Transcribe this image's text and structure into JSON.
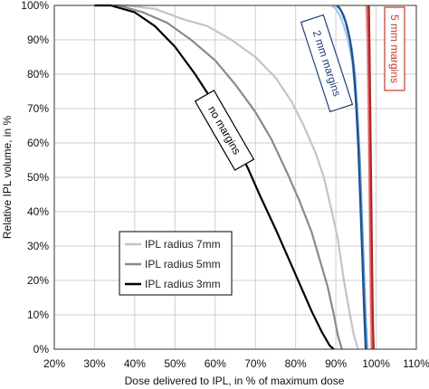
{
  "chart_data": {
    "type": "line",
    "title": "",
    "xlabel": "Dose delivered to IPL, in % of maximum dose",
    "ylabel": "Relative IPL volume, in %",
    "xlim": [
      20,
      110
    ],
    "ylim": [
      0,
      100
    ],
    "x_ticks": [
      "20%",
      "30%",
      "40%",
      "50%",
      "60%",
      "70%",
      "80%",
      "90%",
      "100%",
      "110%"
    ],
    "y_ticks": [
      "0%",
      "10%",
      "20%",
      "30%",
      "40%",
      "50%",
      "60%",
      "70%",
      "80%",
      "90%",
      "100%"
    ],
    "grid": true,
    "legend_position": "lower-left",
    "legend": [
      {
        "label": "IPL radius 7mm",
        "color": "#c4c4c4"
      },
      {
        "label": "IPL radius 5mm",
        "color": "#8a8a8a"
      },
      {
        "label": "IPL radius 3mm",
        "color": "#000000"
      }
    ],
    "annotations": [
      {
        "text": "no margins",
        "color": "#000000"
      },
      {
        "text": "2 mm margins",
        "color": "#1f3f7a"
      },
      {
        "text": "5 mm margins",
        "color": "#c0392b"
      }
    ],
    "series": [
      {
        "group": "no margins",
        "color": "#c4c4c4",
        "points": [
          [
            30,
            100
          ],
          [
            38,
            100
          ],
          [
            45,
            99
          ],
          [
            52,
            96
          ],
          [
            58,
            94
          ],
          [
            64,
            90
          ],
          [
            70,
            85
          ],
          [
            75,
            79
          ],
          [
            79,
            72
          ],
          [
            82,
            65
          ],
          [
            85,
            57
          ],
          [
            87,
            50
          ],
          [
            89,
            40
          ],
          [
            90.5,
            32
          ],
          [
            92,
            20
          ],
          [
            93.5,
            10
          ],
          [
            94.5,
            4
          ],
          [
            95.5,
            0
          ]
        ]
      },
      {
        "group": "no margins",
        "color": "#8a8a8a",
        "points": [
          [
            30,
            100
          ],
          [
            36,
            100
          ],
          [
            42,
            98
          ],
          [
            48,
            95
          ],
          [
            54,
            90
          ],
          [
            60,
            84
          ],
          [
            65,
            77
          ],
          [
            70,
            69
          ],
          [
            74,
            61
          ],
          [
            78,
            51
          ],
          [
            81,
            43
          ],
          [
            84,
            34
          ],
          [
            86,
            26
          ],
          [
            88,
            18
          ],
          [
            89.5,
            10
          ],
          [
            90.5,
            4
          ],
          [
            91.5,
            0
          ]
        ]
      },
      {
        "group": "no margins",
        "color": "#000000",
        "points": [
          [
            30,
            100
          ],
          [
            34,
            100
          ],
          [
            40,
            98
          ],
          [
            45,
            94
          ],
          [
            50,
            88
          ],
          [
            55,
            80
          ],
          [
            60,
            71
          ],
          [
            64,
            62
          ],
          [
            68,
            53
          ],
          [
            71,
            45
          ],
          [
            75,
            35
          ],
          [
            78,
            27
          ],
          [
            81,
            19
          ],
          [
            84,
            11
          ],
          [
            86.5,
            5
          ],
          [
            88.5,
            1
          ],
          [
            89.5,
            0
          ]
        ]
      },
      {
        "group": "2 mm margins",
        "color": "#a8c8ec",
        "points": [
          [
            89,
            100
          ],
          [
            90,
            99
          ],
          [
            91,
            97
          ],
          [
            92,
            94
          ],
          [
            93,
            90
          ],
          [
            94,
            84
          ],
          [
            94.8,
            76
          ],
          [
            95.4,
            65
          ],
          [
            96,
            50
          ],
          [
            96.5,
            35
          ],
          [
            97,
            20
          ],
          [
            97.4,
            8
          ],
          [
            97.8,
            0
          ]
        ]
      },
      {
        "group": "2 mm margins",
        "color": "#5b9bd5",
        "points": [
          [
            90,
            100
          ],
          [
            91,
            99
          ],
          [
            92,
            97
          ],
          [
            93,
            93
          ],
          [
            94,
            87
          ],
          [
            94.8,
            79
          ],
          [
            95.4,
            68
          ],
          [
            96,
            54
          ],
          [
            96.5,
            38
          ],
          [
            97,
            22
          ],
          [
            97.4,
            9
          ],
          [
            97.8,
            0
          ]
        ]
      },
      {
        "group": "2 mm margins",
        "color": "#1f4e8c",
        "points": [
          [
            90.5,
            100
          ],
          [
            91.5,
            98
          ],
          [
            92.5,
            95
          ],
          [
            93.5,
            90
          ],
          [
            94.3,
            83
          ],
          [
            95,
            72
          ],
          [
            95.6,
            58
          ],
          [
            96.1,
            42
          ],
          [
            96.6,
            26
          ],
          [
            97,
            12
          ],
          [
            97.4,
            0
          ]
        ]
      },
      {
        "group": "5 mm margins",
        "color": "#f2b8b8",
        "points": [
          [
            97.5,
            100
          ],
          [
            97.8,
            90
          ],
          [
            98,
            75
          ],
          [
            98.2,
            55
          ],
          [
            98.4,
            35
          ],
          [
            98.6,
            15
          ],
          [
            98.8,
            0
          ]
        ]
      },
      {
        "group": "5 mm margins",
        "color": "#e06666",
        "points": [
          [
            97.8,
            100
          ],
          [
            98,
            88
          ],
          [
            98.2,
            70
          ],
          [
            98.4,
            50
          ],
          [
            98.6,
            30
          ],
          [
            98.8,
            12
          ],
          [
            99,
            0
          ]
        ]
      },
      {
        "group": "5 mm margins",
        "color": "#b22222",
        "points": [
          [
            98.2,
            100
          ],
          [
            98.4,
            85
          ],
          [
            98.6,
            65
          ],
          [
            98.8,
            45
          ],
          [
            99,
            25
          ],
          [
            99.2,
            8
          ],
          [
            99.4,
            0
          ]
        ]
      }
    ]
  }
}
